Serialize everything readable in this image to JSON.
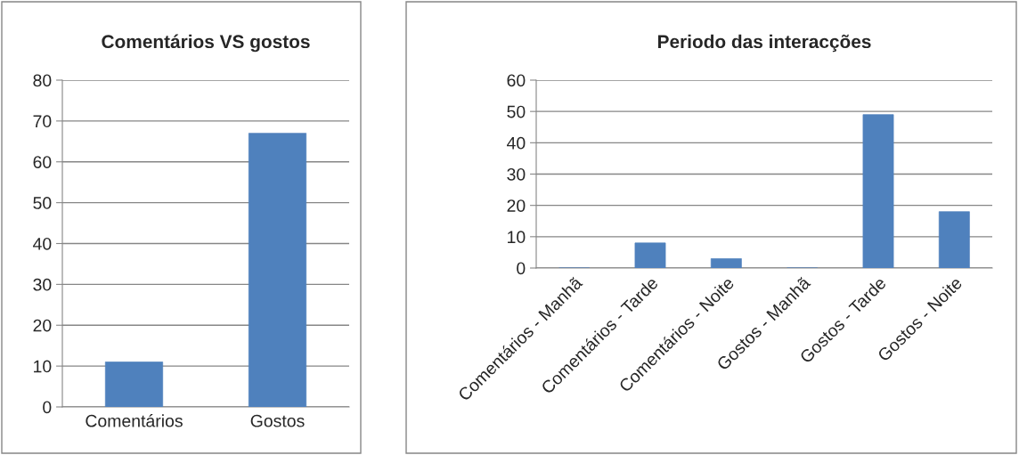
{
  "chart_data": [
    {
      "type": "bar",
      "title": "Comentários VS gostos",
      "categories": [
        "Comentários",
        "Gostos"
      ],
      "values": [
        11,
        67
      ],
      "color": "#4f81bd",
      "ylim": [
        0,
        80
      ],
      "yticks": [
        0,
        10,
        20,
        30,
        40,
        50,
        60,
        70,
        80
      ],
      "grid": "y",
      "legend": false
    },
    {
      "type": "bar",
      "title": "Periodo das interacções",
      "categories": [
        "Comentários - Manhã",
        "Comentários - Tarde",
        "Comentários - Noite",
        "Gostos - Manhã",
        "Gostos - Tarde",
        "Gostos - Noite"
      ],
      "values": [
        0,
        8,
        3,
        0,
        49,
        18
      ],
      "color": "#4f81bd",
      "ylim": [
        0,
        60
      ],
      "yticks": [
        0,
        10,
        20,
        30,
        40,
        50,
        60
      ],
      "grid": "y",
      "legend": false
    }
  ]
}
